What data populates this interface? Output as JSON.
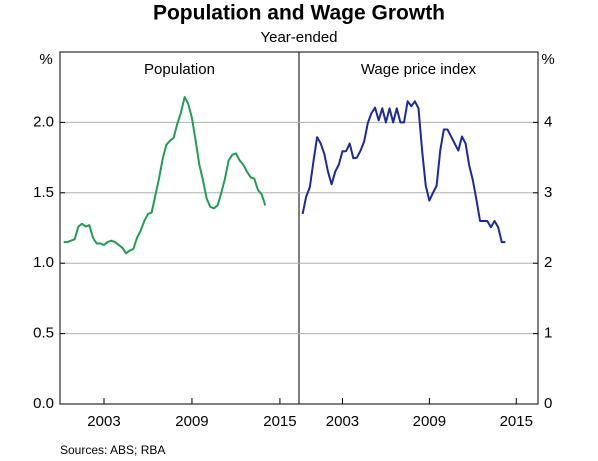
{
  "title": "Population and Wage Growth",
  "subtitle": "Year-ended",
  "source": "Sources:   ABS; RBA",
  "chart_data": [
    {
      "type": "line",
      "title": "Population",
      "y_unit": "%",
      "y_axis_side": "left",
      "grid": true,
      "xlim": [
        2000,
        2016.3
      ],
      "xticks": [
        2003,
        2009,
        2015
      ],
      "ylim": [
        0,
        2.5
      ],
      "yticks": [
        {
          "value": 0,
          "label": "0.0"
        },
        0.5,
        {
          "value": 1,
          "label": "1.0"
        },
        1.5,
        {
          "value": 2,
          "label": "2.0"
        }
      ],
      "series": [
        {
          "name": "Population",
          "color": "#1f9e55",
          "x": [
            2000.25,
            2000.5,
            2000.75,
            2001,
            2001.25,
            2001.5,
            2001.75,
            2002,
            2002.25,
            2002.5,
            2002.75,
            2003,
            2003.25,
            2003.5,
            2003.75,
            2004,
            2004.25,
            2004.5,
            2004.75,
            2005,
            2005.25,
            2005.5,
            2005.75,
            2006,
            2006.25,
            2006.5,
            2006.75,
            2007,
            2007.25,
            2007.5,
            2007.75,
            2008,
            2008.25,
            2008.5,
            2008.75,
            2009,
            2009.25,
            2009.5,
            2009.75,
            2010,
            2010.25,
            2010.5,
            2010.75,
            2011,
            2011.25,
            2011.5,
            2011.75,
            2012,
            2012.25,
            2012.5,
            2012.75,
            2013,
            2013.25,
            2013.5,
            2013.75,
            2014
          ],
          "values": [
            1.15,
            1.15,
            1.16,
            1.17,
            1.26,
            1.28,
            1.26,
            1.27,
            1.18,
            1.14,
            1.14,
            1.13,
            1.15,
            1.16,
            1.15,
            1.13,
            1.11,
            1.07,
            1.09,
            1.1,
            1.18,
            1.23,
            1.3,
            1.35,
            1.36,
            1.48,
            1.6,
            1.74,
            1.84,
            1.87,
            1.89,
            1.99,
            2.07,
            2.18,
            2.13,
            2.03,
            1.87,
            1.7,
            1.59,
            1.46,
            1.4,
            1.39,
            1.41,
            1.5,
            1.6,
            1.73,
            1.77,
            1.78,
            1.73,
            1.7,
            1.65,
            1.61,
            1.6,
            1.52,
            1.49,
            1.41
          ]
        }
      ]
    },
    {
      "type": "line",
      "title": "Wage price index",
      "y_unit": "%",
      "y_axis_side": "right",
      "grid": true,
      "xlim": [
        2000,
        2016.5
      ],
      "xticks": [
        2003,
        2009,
        2015
      ],
      "ylim": [
        0,
        5
      ],
      "yticks": [
        0,
        1,
        2,
        3,
        4
      ],
      "series": [
        {
          "name": "Wage price index",
          "color": "#1a2a9c",
          "x": [
            2000.25,
            2000.5,
            2000.75,
            2001,
            2001.25,
            2001.5,
            2001.75,
            2002,
            2002.25,
            2002.5,
            2002.75,
            2003,
            2003.25,
            2003.5,
            2003.75,
            2004,
            2004.25,
            2004.5,
            2004.75,
            2005,
            2005.25,
            2005.5,
            2005.75,
            2006,
            2006.25,
            2006.5,
            2006.75,
            2007,
            2007.25,
            2007.5,
            2007.75,
            2008,
            2008.25,
            2008.5,
            2008.75,
            2009,
            2009.25,
            2009.5,
            2009.75,
            2010,
            2010.25,
            2010.5,
            2010.75,
            2011,
            2011.25,
            2011.5,
            2011.75,
            2012,
            2012.25,
            2012.5,
            2012.75,
            2013,
            2013.25,
            2013.5,
            2013.75,
            2014,
            2014.25
          ],
          "values": [
            2.7,
            2.95,
            3.08,
            3.45,
            3.79,
            3.7,
            3.55,
            3.3,
            3.12,
            3.3,
            3.4,
            3.59,
            3.59,
            3.7,
            3.49,
            3.5,
            3.6,
            3.73,
            3.99,
            4.13,
            4.21,
            4.03,
            4.2,
            4.0,
            4.2,
            4.0,
            4.2,
            4.0,
            4.0,
            4.3,
            4.23,
            4.3,
            4.2,
            3.6,
            3.1,
            2.89,
            3.0,
            3.1,
            3.6,
            3.9,
            3.9,
            3.8,
            3.7,
            3.6,
            3.8,
            3.7,
            3.39,
            3.18,
            2.9,
            2.6,
            2.6,
            2.6,
            2.51,
            2.6,
            2.51,
            2.3,
            2.3
          ]
        }
      ]
    }
  ]
}
